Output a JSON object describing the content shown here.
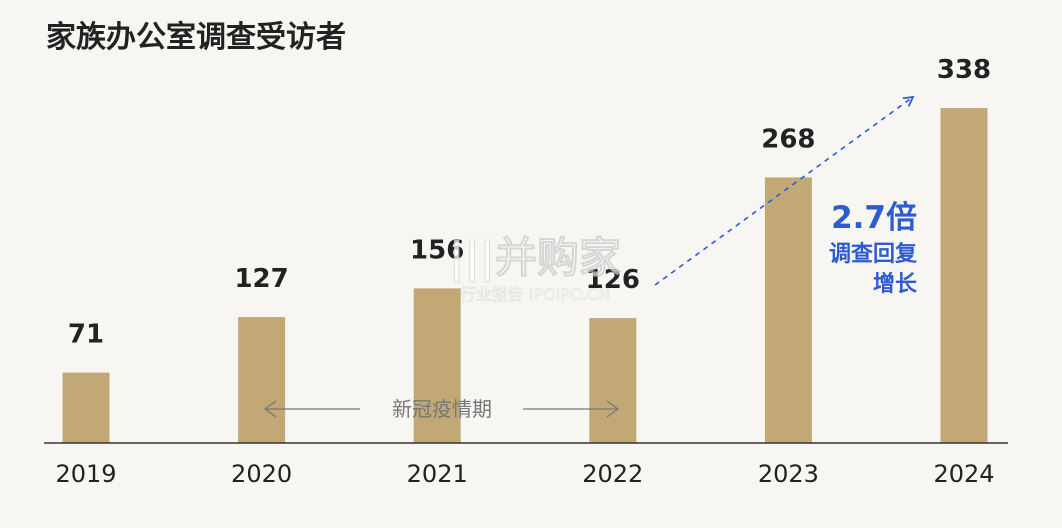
{
  "chart_data": {
    "type": "bar",
    "title": "家族办公室调查受访者",
    "categories": [
      "2019",
      "2020",
      "2021",
      "2022",
      "2023",
      "2024"
    ],
    "values": [
      71,
      127,
      156,
      126,
      268,
      338
    ],
    "xlabel": "",
    "ylabel": "",
    "ylim": [
      0,
      338
    ],
    "grid": false,
    "legend": "none",
    "bar_color": "#c1a875",
    "annotations": {
      "growth_value": "2.7倍",
      "growth_line1": "调查回复",
      "growth_line2": "增长",
      "growth_color": "#2d5bd0",
      "covid_label": "新冠疫情期"
    }
  },
  "watermark": {
    "line1": "|||并购家",
    "line2": "行业报告 IPOIPO.CN"
  }
}
